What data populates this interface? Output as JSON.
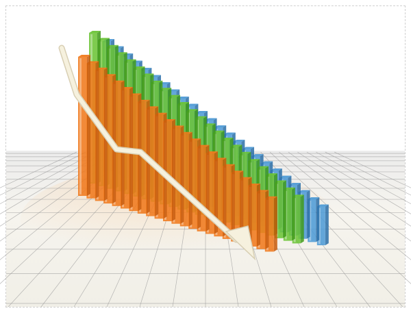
{
  "image": {
    "subject": "3d-declining-bar-chart-with-arrow",
    "colors": {
      "background": "#ffffff",
      "floor": "#f3f1ea",
      "grid": "#9a9a9a",
      "orange": "#f07a1e",
      "orange_dark": "#c85a0a",
      "green": "#6cc437",
      "green_dark": "#3f9a1a",
      "blue": "#4f9bd6",
      "blue_dark": "#2a6fa8",
      "arrow": "#f6f1de",
      "arrow_edge": "#d8cfb4"
    }
  }
}
